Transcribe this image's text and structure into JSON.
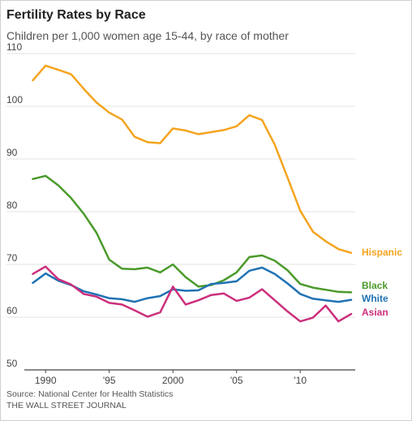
{
  "title": "Fertility Rates by Race",
  "subtitle": "Children per 1,000 women age 15-44, by race of mother",
  "source": "Source: National Center for Health Statistics",
  "publisher": "THE WALL STREET JOURNAL",
  "chart_data": {
    "type": "line",
    "title": "Fertility Rates by Race",
    "subtitle": "Children per 1,000 women age 15-44, by race of mother",
    "xlabel": "",
    "ylabel": "",
    "ylim": [
      50,
      110
    ],
    "xlim": [
      1989,
      2014
    ],
    "y_ticks": [
      50,
      60,
      70,
      80,
      90,
      100,
      110
    ],
    "x_ticks": [
      {
        "value": 1990,
        "label": "1990"
      },
      {
        "value": 1995,
        "label": "'95"
      },
      {
        "value": 2000,
        "label": "2000"
      },
      {
        "value": 2005,
        "label": "'05"
      },
      {
        "value": 2010,
        "label": "'10"
      }
    ],
    "grid": "horizontal",
    "legend": "direct labels at right end of lines",
    "x": [
      1989,
      1990,
      1991,
      1992,
      1993,
      1994,
      1995,
      1996,
      1997,
      1998,
      1999,
      2000,
      2001,
      2002,
      2003,
      2004,
      2005,
      2006,
      2007,
      2008,
      2009,
      2010,
      2011,
      2012,
      2013,
      2014
    ],
    "series": [
      {
        "name": "Hispanic",
        "color": "#f4a41f",
        "values": [
          104.9,
          107.7,
          106.9,
          106.1,
          103.3,
          100.7,
          98.8,
          97.5,
          94.2,
          93.2,
          93.0,
          95.8,
          95.4,
          94.7,
          95.1,
          95.5,
          96.2,
          98.3,
          97.4,
          92.7,
          86.5,
          80.2,
          76.2,
          74.4,
          72.9,
          72.2
        ]
      },
      {
        "name": "Black",
        "color": "#4a9a2a",
        "values": [
          86.2,
          86.8,
          85.0,
          82.6,
          79.6,
          76.0,
          70.9,
          69.2,
          69.1,
          69.4,
          68.5,
          70.0,
          67.6,
          65.8,
          66.1,
          67.0,
          68.5,
          71.4,
          71.7,
          70.7,
          68.9,
          66.3,
          65.6,
          65.2,
          64.8,
          64.7
        ]
      },
      {
        "name": "White",
        "color": "#1f72b4",
        "values": [
          66.5,
          68.3,
          66.9,
          66.1,
          64.9,
          64.3,
          63.6,
          63.4,
          62.9,
          63.6,
          64.0,
          65.3,
          65.0,
          65.1,
          66.3,
          66.5,
          66.8,
          68.8,
          69.4,
          68.2,
          66.4,
          64.4,
          63.5,
          63.2,
          62.9,
          63.3
        ]
      },
      {
        "name": "Asian",
        "color": "#cc2e7c",
        "values": [
          68.2,
          69.6,
          67.2,
          66.2,
          64.4,
          63.9,
          62.7,
          62.4,
          61.3,
          60.1,
          60.9,
          65.8,
          62.4,
          63.2,
          64.2,
          64.5,
          63.1,
          63.7,
          65.3,
          63.2,
          61.1,
          59.2,
          59.9,
          62.2,
          59.2,
          60.6
        ]
      }
    ]
  }
}
